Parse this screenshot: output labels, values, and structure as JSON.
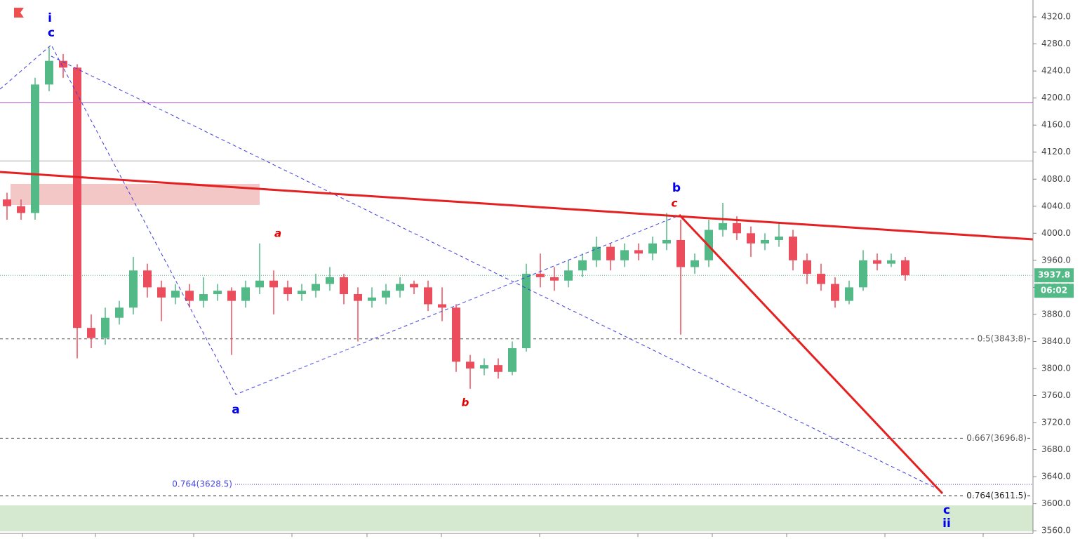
{
  "chart_data": {
    "type": "candlestick",
    "open": [
      4050,
      4040,
      4030,
      4220,
      4255,
      4245,
      3860,
      3845,
      3875,
      3890,
      3945,
      3920,
      3905,
      3915,
      3900,
      3910,
      3915,
      3900,
      3920,
      3930,
      3920,
      3910,
      3915,
      3925,
      3935,
      3910,
      3900,
      3905,
      3915,
      3925,
      3920,
      3895,
      3890,
      3810,
      3800,
      3805,
      3795,
      3830,
      3940,
      3935,
      3930,
      3945,
      3960,
      3980,
      3960,
      3975,
      3970,
      3985,
      3990,
      3950,
      3960,
      4005,
      4015,
      4000,
      3985,
      3990,
      3995,
      3960,
      3940,
      3925,
      3900,
      3920,
      3960,
      3955,
      3960
    ],
    "high": [
      4060,
      4050,
      4230,
      4275,
      4265,
      4250,
      3880,
      3890,
      3900,
      3965,
      3955,
      3930,
      3925,
      3925,
      3935,
      3925,
      3920,
      3930,
      3985,
      3945,
      3930,
      3925,
      3940,
      3950,
      3940,
      3920,
      3920,
      3925,
      3935,
      3930,
      3930,
      3920,
      3895,
      3820,
      3815,
      3815,
      3840,
      3955,
      3970,
      3950,
      3960,
      3970,
      3995,
      3985,
      3985,
      3985,
      3995,
      4030,
      4020,
      3970,
      4020,
      4045,
      4025,
      4010,
      4000,
      4015,
      4005,
      3970,
      3955,
      3935,
      3930,
      3975,
      3970,
      3970,
      3965
    ],
    "low": [
      4020,
      4020,
      4020,
      4210,
      4230,
      3815,
      3830,
      3835,
      3865,
      3880,
      3905,
      3870,
      3895,
      3890,
      3890,
      3900,
      3820,
      3890,
      3910,
      3880,
      3900,
      3900,
      3905,
      3915,
      3895,
      3840,
      3890,
      3895,
      3905,
      3910,
      3885,
      3870,
      3795,
      3770,
      3790,
      3785,
      3790,
      3825,
      3920,
      3915,
      3920,
      3935,
      3950,
      3945,
      3950,
      3960,
      3960,
      3975,
      3850,
      3940,
      3950,
      3995,
      3990,
      3965,
      3975,
      3980,
      3945,
      3925,
      3915,
      3890,
      3895,
      3915,
      3945,
      3950,
      3930
    ],
    "close": [
      4040,
      4030,
      4220,
      4255,
      4245,
      3860,
      3845,
      3875,
      3890,
      3945,
      3920,
      3905,
      3915,
      3900,
      3910,
      3915,
      3900,
      3920,
      3930,
      3920,
      3910,
      3915,
      3925,
      3935,
      3910,
      3900,
      3905,
      3915,
      3925,
      3920,
      3895,
      3890,
      3810,
      3800,
      3805,
      3795,
      3830,
      3940,
      3935,
      3930,
      3945,
      3960,
      3980,
      3960,
      3975,
      3970,
      3985,
      3990,
      3950,
      3960,
      4005,
      4015,
      4000,
      3985,
      3990,
      3995,
      3960,
      3940,
      3925,
      3900,
      3920,
      3960,
      3955,
      3960,
      3937.8
    ],
    "up_color": "#53b987",
    "down_color": "#eb4d5c",
    "ylim": [
      3556,
      4345
    ],
    "yticks": [
      {
        "value": 3560,
        "label": "3560.0"
      },
      {
        "value": 3600,
        "label": "3600.0"
      },
      {
        "value": 3640,
        "label": "3640.0"
      },
      {
        "value": 3680,
        "label": "3680.0"
      },
      {
        "value": 3720,
        "label": "3720.0"
      },
      {
        "value": 3760,
        "label": "3760.0"
      },
      {
        "value": 3800,
        "label": "3800.0"
      },
      {
        "value": 3840,
        "label": "3840.0"
      },
      {
        "value": 3880,
        "label": "3880.0"
      },
      {
        "value": 3920,
        "label": "3920.0"
      },
      {
        "value": 3960,
        "label": "3960.0"
      },
      {
        "value": 4000,
        "label": "4000.0"
      },
      {
        "value": 4040,
        "label": "4040.0"
      },
      {
        "value": 4080,
        "label": "4080.0"
      },
      {
        "value": 4120,
        "label": "4120.0"
      },
      {
        "value": 4160,
        "label": "4160.0"
      },
      {
        "value": 4200,
        "label": "4200.0"
      },
      {
        "value": 4240,
        "label": "4240.0"
      },
      {
        "value": 4280,
        "label": "4280.0"
      },
      {
        "value": 4320,
        "label": "4320.0"
      }
    ],
    "levels": [
      {
        "value": 3843.8,
        "label": "0.5(3843.8)",
        "color": "#555"
      },
      {
        "value": 3696.8,
        "label": "0.667(3696.8)",
        "color": "#555"
      },
      {
        "value": 3611.5,
        "label": "0.764(3611.5)",
        "color": "#222"
      },
      {
        "value": 3628.5,
        "label": "0.764(3628.5)",
        "color": "#4a4ae0"
      }
    ],
    "lines": [
      {
        "value": 4193,
        "color": "#b04ad0"
      },
      {
        "value": 4107,
        "color": "#aaa"
      }
    ],
    "last_price": 3937.8,
    "countdown": "06:02",
    "annotations": [
      {
        "text": "i",
        "color": "#0000ee"
      },
      {
        "text": "c",
        "color": "#0000ee"
      },
      {
        "text": "a",
        "color": "#0000ee"
      },
      {
        "text": "b",
        "color": "#0000ee"
      },
      {
        "text": "c",
        "color": "#0000ee"
      },
      {
        "text": "ii",
        "color": "#0000ee"
      },
      {
        "text": "a",
        "color": "#e00000"
      },
      {
        "text": "b",
        "color": "#e00000"
      },
      {
        "text": "c",
        "color": "#e00000"
      }
    ]
  }
}
